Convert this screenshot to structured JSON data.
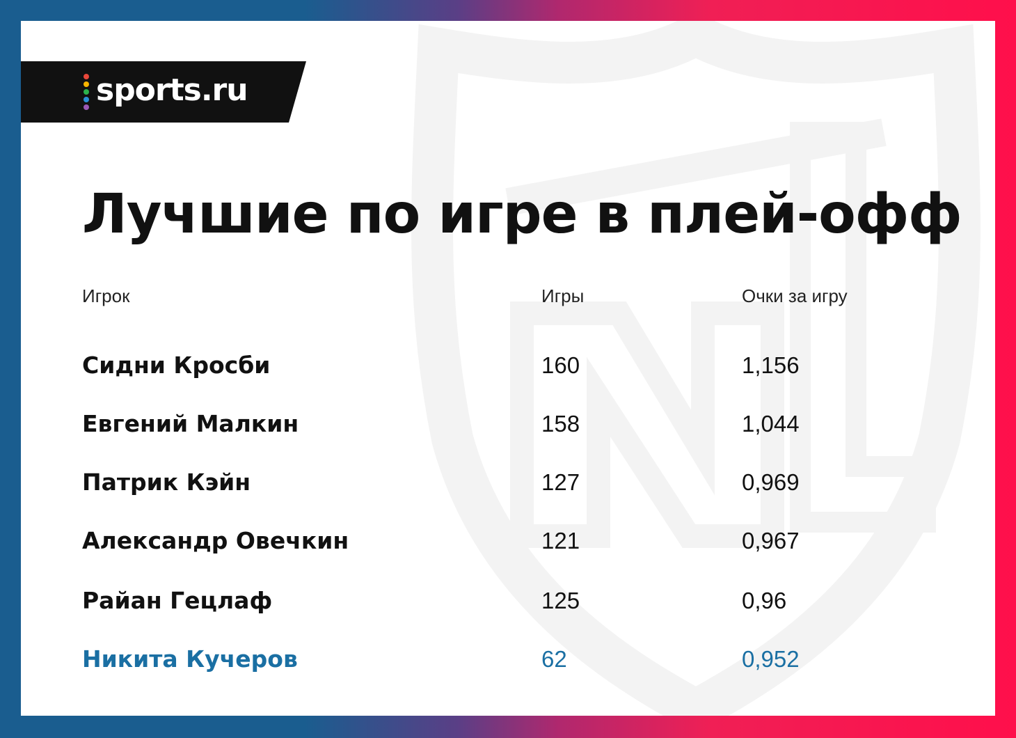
{
  "brand": {
    "logo_text": "sports.ru",
    "dot_colors": [
      "#e9473a",
      "#f7b500",
      "#2bb24c",
      "#2a8fd6",
      "#9b59b6"
    ]
  },
  "title": "Лучшие по игре в плей-офф",
  "table": {
    "headers": {
      "player": "Игрок",
      "games": "Игры",
      "points_per_game": "Очки за игру"
    },
    "rows": [
      {
        "player": "Сидни Кросби",
        "games": "160",
        "points_per_game": "1,156",
        "highlight": false
      },
      {
        "player": "Евгений Малкин",
        "games": "158",
        "points_per_game": "1,044",
        "highlight": false
      },
      {
        "player": "Патрик Кэйн",
        "games": "127",
        "points_per_game": "0,969",
        "highlight": false
      },
      {
        "player": "Александр Овечкин",
        "games": "121",
        "points_per_game": "0,967",
        "highlight": false
      },
      {
        "player": "Райан Гецлаф",
        "games": "125",
        "points_per_game": "0,96",
        "highlight": false
      },
      {
        "player": "Никита Кучеров",
        "games": "62",
        "points_per_game": "0,952",
        "highlight": true
      }
    ]
  },
  "colors": {
    "text": "#111111",
    "highlight": "#1a6fa3",
    "banner": "#111111",
    "watermark": "#f3f3f3"
  },
  "icons": {
    "watermark": "nhl-shield-icon"
  }
}
